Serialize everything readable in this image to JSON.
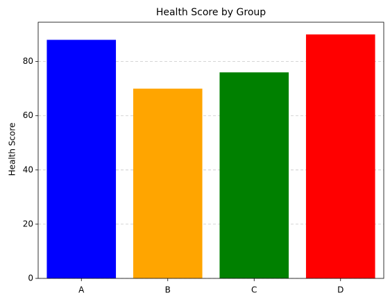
{
  "chart_data": {
    "type": "bar",
    "title": "Health Score by Group",
    "ylabel": "Health Score",
    "categories": [
      "A",
      "B",
      "C",
      "D"
    ],
    "values": [
      88,
      70,
      76,
      90
    ],
    "colors": [
      "blue",
      "orange",
      "green",
      "red"
    ],
    "ylim": [
      0,
      94.5
    ],
    "yticks": [
      0,
      20,
      40,
      60,
      80
    ],
    "grid": true
  }
}
